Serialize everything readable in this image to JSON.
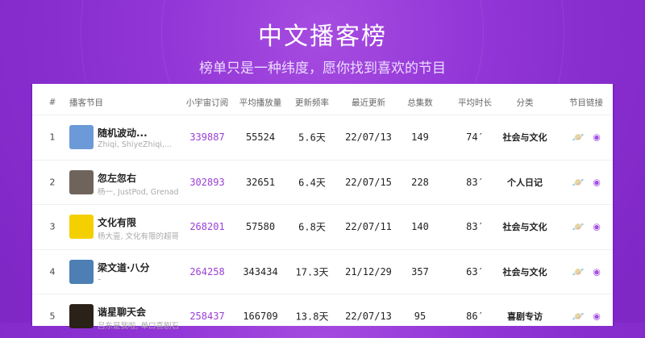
{
  "title": "中文播客榜",
  "subtitle": "榜单只是一种纬度，愿你找到喜欢的节目",
  "accent": "#9b3fd6",
  "headers": [
    "#",
    "播客节目",
    "小宇宙订阅",
    "平均播放量",
    "更新频率",
    "最近更新",
    "总集数",
    "平均时长",
    "分类",
    "节目链接"
  ],
  "rows": [
    {
      "rank": "1",
      "title": "随机波动...",
      "authors": "Zhiqi, ShiyeZhiqi,...",
      "subs": "339887",
      "plays": "55524",
      "freq": "5.6天",
      "last": "22/07/13",
      "episodes": "149",
      "duration": "74′",
      "category": "社会与文化",
      "cover": "#6c9ad8"
    },
    {
      "rank": "2",
      "title": "忽左忽右",
      "authors": "杨一, JustPod, Grenad",
      "subs": "302893",
      "plays": "32651",
      "freq": "6.4天",
      "last": "22/07/15",
      "episodes": "228",
      "duration": "83′",
      "category": "个人日记",
      "cover": "#6f645c"
    },
    {
      "rank": "3",
      "title": "文化有限",
      "authors": "杨大壹, 文化有限的超哥",
      "subs": "268201",
      "plays": "57580",
      "freq": "6.8天",
      "last": "22/07/11",
      "episodes": "140",
      "duration": "83′",
      "category": "社会与文化",
      "cover": "#f5d000"
    },
    {
      "rank": "4",
      "title": "梁文道·八分",
      "authors": "–",
      "subs": "264258",
      "plays": "343434",
      "freq": "17.3天",
      "last": "21/12/29",
      "episodes": "357",
      "duration": "63′",
      "category": "社会与文化",
      "cover": "#4d7fb5"
    },
    {
      "rank": "5",
      "title": "谐星聊天会",
      "authors": "吕东是我啦, 单口喜剧石老",
      "subs": "258437",
      "plays": "166709",
      "freq": "13.8天",
      "last": "22/07/13",
      "episodes": "95",
      "duration": "86′",
      "category": "喜剧专访",
      "cover": "#2a2219"
    }
  ],
  "link_icons": [
    "planet-icon",
    "podcast-icon"
  ]
}
